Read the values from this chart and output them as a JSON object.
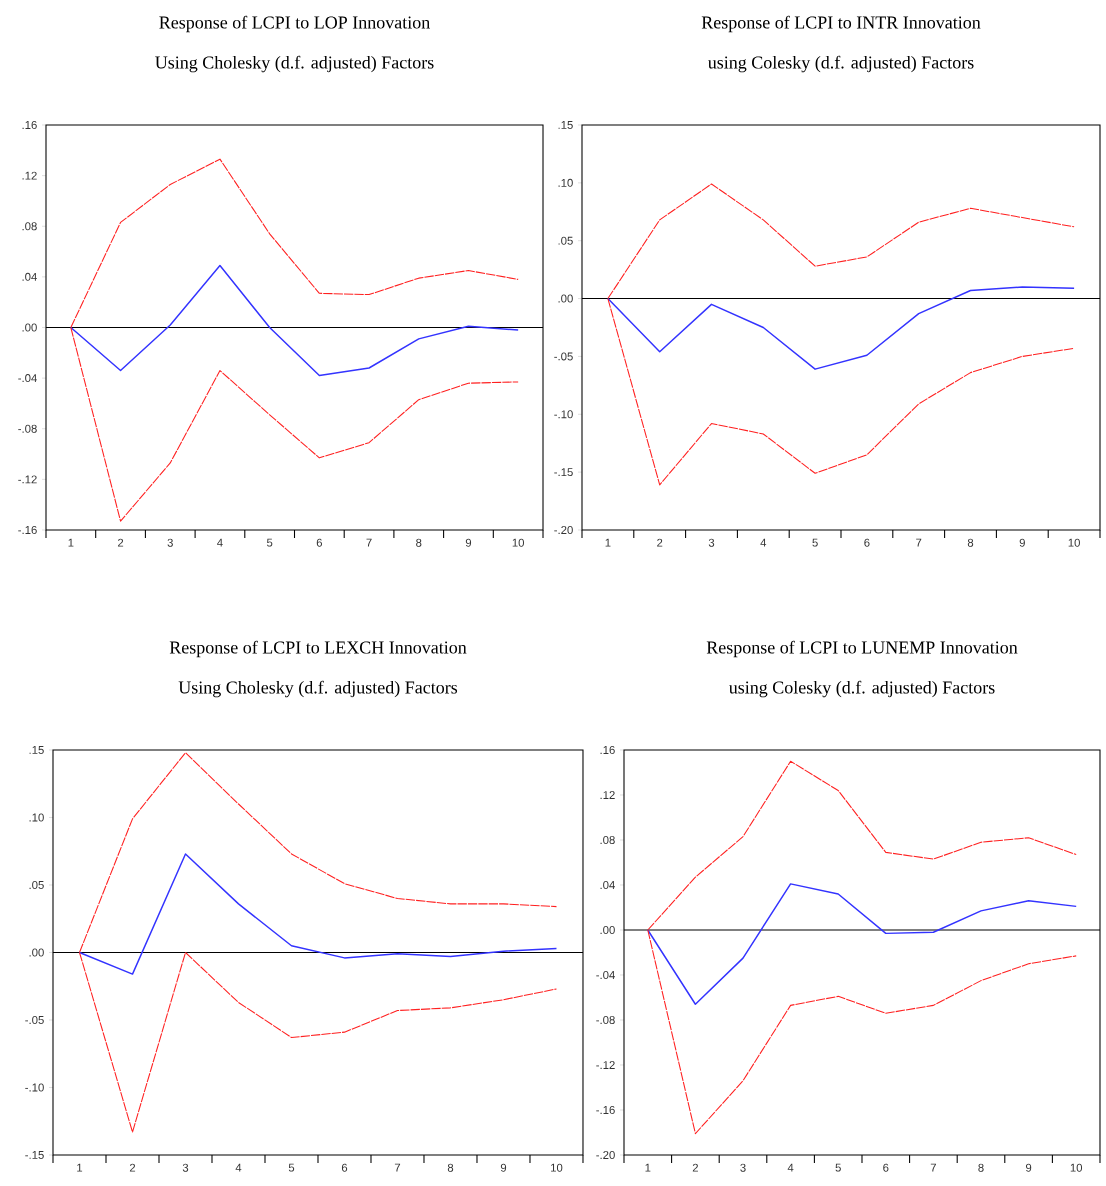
{
  "chart_data": [
    {
      "type": "line",
      "title": "Response of LCPI to LOP Innovation",
      "subtitle": "Using Cholesky (d.f. adjusted) Factors",
      "categories": [
        "1",
        "2",
        "3",
        "4",
        "5",
        "6",
        "7",
        "8",
        "9",
        "10"
      ],
      "series": [
        {
          "color": "#ff2020",
          "line_style": "dashed",
          "values": [
            0,
            0.083,
            0.113,
            0.133,
            0.074,
            0.027,
            0.026,
            0.039,
            0.045,
            0.038
          ]
        },
        {
          "color": "#3333ff",
          "line_style": "solid",
          "values": [
            0,
            -0.034,
            0.002,
            0.049,
            0,
            -0.038,
            -0.032,
            -0.009,
            0.001,
            -0.002
          ]
        },
        {
          "color": "#ff2020",
          "line_style": "dashed",
          "values": [
            0,
            -0.153,
            -0.107,
            -0.034,
            -0.069,
            -0.103,
            -0.091,
            -0.057,
            -0.044,
            -0.043
          ]
        }
      ],
      "ylim": [
        -0.16,
        0.16
      ],
      "yticks": [
        {
          "value": -0.16,
          "label": "-.16"
        },
        {
          "value": -0.12,
          "label": "-.12"
        },
        {
          "value": -0.08,
          "label": "-.08"
        },
        {
          "value": -0.04,
          "label": "-.04"
        },
        {
          "value": 0,
          "label": ".00"
        },
        {
          "value": 0.04,
          "label": ".04"
        },
        {
          "value": 0.08,
          "label": ".08"
        },
        {
          "value": 0.12,
          "label": ".12"
        },
        {
          "value": 0.16,
          "label": ".16"
        }
      ],
      "ref_lines": [
        {
          "axis": "y",
          "value": 0,
          "color": "#000000"
        }
      ]
    },
    {
      "type": "line",
      "title": "Response of LCPI to INTR Innovation",
      "subtitle": "using Colesky (d.f. adjusted) Factors",
      "categories": [
        "1",
        "2",
        "3",
        "4",
        "5",
        "6",
        "7",
        "8",
        "9",
        "10"
      ],
      "series": [
        {
          "color": "#ff2020",
          "line_style": "dashed",
          "values": [
            0,
            0.068,
            0.099,
            0.068,
            0.028,
            0.036,
            0.066,
            0.078,
            0.07,
            0.062
          ]
        },
        {
          "color": "#3333ff",
          "line_style": "solid",
          "values": [
            0,
            -0.046,
            -0.005,
            -0.025,
            -0.061,
            -0.049,
            -0.013,
            0.007,
            0.01,
            0.009
          ]
        },
        {
          "color": "#ff2020",
          "line_style": "dashed",
          "values": [
            0,
            -0.161,
            -0.108,
            -0.117,
            -0.151,
            -0.135,
            -0.091,
            -0.064,
            -0.05,
            -0.043
          ]
        }
      ],
      "ylim": [
        -0.2,
        0.15
      ],
      "yticks": [
        {
          "value": -0.2,
          "label": "-.20"
        },
        {
          "value": -0.15,
          "label": "-.15"
        },
        {
          "value": -0.1,
          "label": "-.10"
        },
        {
          "value": -0.05,
          "label": "-.05"
        },
        {
          "value": 0,
          "label": ".00"
        },
        {
          "value": 0.05,
          "label": ".05"
        },
        {
          "value": 0.1,
          "label": ".10"
        },
        {
          "value": 0.15,
          "label": ".15"
        }
      ],
      "ref_lines": [
        {
          "axis": "y",
          "value": 0,
          "color": "#000000"
        }
      ]
    },
    {
      "type": "line",
      "title": "Response of LCPI to LEXCH Innovation",
      "subtitle": "Using Cholesky (d.f. adjusted) Factors",
      "categories": [
        "1",
        "2",
        "3",
        "4",
        "5",
        "6",
        "7",
        "8",
        "9",
        "10"
      ],
      "series": [
        {
          "color": "#ff2020",
          "line_style": "dashed",
          "values": [
            0,
            0.099,
            0.148,
            0.11,
            0.073,
            0.051,
            0.04,
            0.036,
            0.036,
            0.034
          ]
        },
        {
          "color": "#3333ff",
          "line_style": "solid",
          "values": [
            0,
            -0.016,
            0.073,
            0.036,
            0.005,
            -0.004,
            -0.001,
            -0.003,
            0.001,
            0.003
          ]
        },
        {
          "color": "#ff2020",
          "line_style": "dashed",
          "values": [
            0,
            -0.133,
            0,
            -0.037,
            -0.063,
            -0.059,
            -0.043,
            -0.041,
            -0.035,
            -0.027
          ]
        }
      ],
      "ylim": [
        -0.15,
        0.15
      ],
      "yticks": [
        {
          "value": -0.15,
          "label": "-.15"
        },
        {
          "value": -0.1,
          "label": "-.10"
        },
        {
          "value": -0.05,
          "label": "-.05"
        },
        {
          "value": 0,
          "label": ".00"
        },
        {
          "value": 0.05,
          "label": ".05"
        },
        {
          "value": 0.1,
          "label": ".10"
        },
        {
          "value": 0.15,
          "label": ".15"
        }
      ],
      "ref_lines": [
        {
          "axis": "y",
          "value": 0,
          "color": "#000000"
        }
      ]
    },
    {
      "type": "line",
      "title": "Response of LCPI to LUNEMP Innovation",
      "subtitle": "using Colesky (d.f. adjusted) Factors",
      "categories": [
        "1",
        "2",
        "3",
        "4",
        "5",
        "6",
        "7",
        "8",
        "9",
        "10"
      ],
      "series": [
        {
          "color": "#ff2020",
          "line_style": "dashed",
          "values": [
            0,
            0.047,
            0.083,
            0.15,
            0.124,
            0.069,
            0.063,
            0.078,
            0.082,
            0.067
          ]
        },
        {
          "color": "#3333ff",
          "line_style": "solid",
          "values": [
            0,
            -0.066,
            -0.025,
            0.041,
            0.032,
            -0.003,
            -0.002,
            0.017,
            0.026,
            0.021
          ]
        },
        {
          "color": "#ff2020",
          "line_style": "dashed",
          "values": [
            0,
            -0.181,
            -0.134,
            -0.067,
            -0.059,
            -0.074,
            -0.067,
            -0.045,
            -0.03,
            -0.023
          ]
        }
      ],
      "ylim": [
        -0.2,
        0.16
      ],
      "yticks": [
        {
          "value": -0.2,
          "label": "-.20"
        },
        {
          "value": -0.16,
          "label": "-.16"
        },
        {
          "value": -0.12,
          "label": "-.12"
        },
        {
          "value": -0.08,
          "label": "-.08"
        },
        {
          "value": -0.04,
          "label": "-.04"
        },
        {
          "value": 0,
          "label": ".00"
        },
        {
          "value": 0.04,
          "label": ".04"
        },
        {
          "value": 0.08,
          "label": ".08"
        },
        {
          "value": 0.12,
          "label": ".12"
        },
        {
          "value": 0.16,
          "label": ".16"
        }
      ],
      "ref_lines": [
        {
          "axis": "y",
          "value": 0,
          "color": "#000000"
        }
      ]
    }
  ]
}
